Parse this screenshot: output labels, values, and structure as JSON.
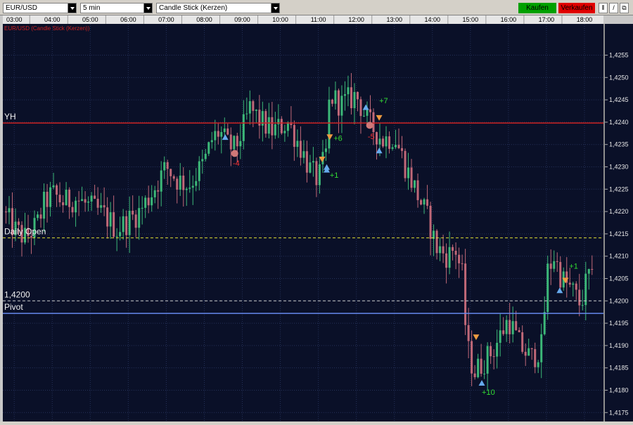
{
  "toolbar": {
    "symbol": "EUR/USD",
    "interval": "5 min",
    "chart_type": "Candle Stick (Kerzen)",
    "buy_label": "Kaufen",
    "sell_label": "Verkaufen",
    "buy_color": "#00a000",
    "sell_color": "#e00000"
  },
  "chart_data": {
    "type": "candlestick",
    "title": "EUR/USD (Candle Stick (Kerzen))",
    "x_ticks": [
      "03:00",
      "04:00",
      "05:00",
      "06:00",
      "07:00",
      "08:00",
      "09:00",
      "10:00",
      "11:00",
      "12:00",
      "13:00",
      "14:00",
      "15:00",
      "16:00",
      "17:00",
      "18:00"
    ],
    "y_ticks": [
      "1,4255",
      "1,4250",
      "1,4245",
      "1,4240",
      "1,4235",
      "1,4230",
      "1,4225",
      "1,4220",
      "1,4215",
      "1,4210",
      "1,4205",
      "1,4200",
      "1,4195",
      "1,4190",
      "1,4185",
      "1,4180",
      "1,4175"
    ],
    "ylim": [
      1.4173,
      1.4262
    ],
    "x_range_hours": [
      2.7,
      18.5
    ],
    "grid": true,
    "price_path": [
      [
        2.7,
        1.422
      ],
      [
        3.0,
        1.4216
      ],
      [
        3.3,
        1.4214
      ],
      [
        3.6,
        1.4217
      ],
      [
        3.8,
        1.4222
      ],
      [
        4.0,
        1.4224
      ],
      [
        4.3,
        1.4222
      ],
      [
        4.6,
        1.4223
      ],
      [
        5.0,
        1.4221
      ],
      [
        5.4,
        1.4219
      ],
      [
        5.7,
        1.4216
      ],
      [
        6.0,
        1.4218
      ],
      [
        6.3,
        1.422
      ],
      [
        6.6,
        1.4224
      ],
      [
        7.0,
        1.423
      ],
      [
        7.3,
        1.4227
      ],
      [
        7.6,
        1.4226
      ],
      [
        8.0,
        1.4231
      ],
      [
        8.2,
        1.4236
      ],
      [
        8.4,
        1.4238
      ],
      [
        8.6,
        1.4235
      ],
      [
        8.8,
        1.4234
      ],
      [
        9.0,
        1.4238
      ],
      [
        9.2,
        1.4243
      ],
      [
        9.5,
        1.424
      ],
      [
        9.8,
        1.4238
      ],
      [
        10.2,
        1.424
      ],
      [
        10.5,
        1.4235
      ],
      [
        10.8,
        1.4229
      ],
      [
        11.0,
        1.4227
      ],
      [
        11.2,
        1.4233
      ],
      [
        11.3,
        1.4246
      ],
      [
        11.6,
        1.4244
      ],
      [
        12.0,
        1.4246
      ],
      [
        12.3,
        1.424
      ],
      [
        12.5,
        1.4238
      ],
      [
        12.7,
        1.4236
      ],
      [
        13.0,
        1.4237
      ],
      [
        13.3,
        1.423
      ],
      [
        13.6,
        1.4224
      ],
      [
        13.9,
        1.4218
      ],
      [
        14.1,
        1.4212
      ],
      [
        14.4,
        1.421
      ],
      [
        14.6,
        1.4212
      ],
      [
        14.8,
        1.4205
      ],
      [
        14.9,
        1.419
      ],
      [
        15.1,
        1.4184
      ],
      [
        15.3,
        1.4186
      ],
      [
        15.6,
        1.4189
      ],
      [
        16.0,
        1.4196
      ],
      [
        16.3,
        1.419
      ],
      [
        16.6,
        1.4187
      ],
      [
        16.9,
        1.419
      ],
      [
        17.0,
        1.4206
      ],
      [
        17.2,
        1.421
      ],
      [
        17.4,
        1.4205
      ],
      [
        17.7,
        1.4202
      ],
      [
        17.9,
        1.4199
      ],
      [
        18.1,
        1.4206
      ],
      [
        18.2,
        1.4204
      ]
    ],
    "horizontal_lines": [
      {
        "label": "YH",
        "value": 1.42398,
        "color": "#cc2222",
        "style": "solid"
      },
      {
        "label": "Daily Open",
        "value": 1.42141,
        "color": "#dddd33",
        "style": "dashed"
      },
      {
        "label": "1,4200",
        "value": 1.42,
        "color": "#cccccc",
        "style": "dashed"
      },
      {
        "label": "Pivot",
        "value": 1.41972,
        "color": "#6688ee",
        "style": "solid"
      }
    ],
    "trade_markers": [
      {
        "t": 8.55,
        "p": 1.42365,
        "kind": "buy"
      },
      {
        "t": 8.8,
        "p": 1.4233,
        "kind": "close"
      },
      {
        "t": 11.1,
        "p": 1.42318,
        "kind": "sell"
      },
      {
        "t": 11.22,
        "p": 1.42298,
        "kind": "buy"
      },
      {
        "t": 11.22,
        "p": 1.42292,
        "kind": "buy"
      },
      {
        "t": 11.3,
        "p": 1.42368,
        "kind": "sell"
      },
      {
        "t": 12.25,
        "p": 1.42432,
        "kind": "buy"
      },
      {
        "t": 12.35,
        "p": 1.42393,
        "kind": "close"
      },
      {
        "t": 12.6,
        "p": 1.42411,
        "kind": "sell"
      },
      {
        "t": 12.6,
        "p": 1.42335,
        "kind": "buy"
      },
      {
        "t": 15.15,
        "p": 1.4192,
        "kind": "sell"
      },
      {
        "t": 15.3,
        "p": 1.41815,
        "kind": "buy"
      },
      {
        "t": 17.35,
        "p": 1.42022,
        "kind": "buy"
      },
      {
        "t": 17.5,
        "p": 1.42047,
        "kind": "sell"
      }
    ],
    "annotations": [
      {
        "t": 8.75,
        "p": 1.42302,
        "text": "-4",
        "color": "#ff3333"
      },
      {
        "t": 11.4,
        "p": 1.42358,
        "text": "+6",
        "color": "#33dd33"
      },
      {
        "t": 11.3,
        "p": 1.42276,
        "text": "+1",
        "color": "#33dd33"
      },
      {
        "t": 12.3,
        "p": 1.42362,
        "text": "-5",
        "color": "#ff3333"
      },
      {
        "t": 12.6,
        "p": 1.42442,
        "text": "+7",
        "color": "#33dd33"
      },
      {
        "t": 15.3,
        "p": 1.4179,
        "text": "+10",
        "color": "#33dd33"
      },
      {
        "t": 17.6,
        "p": 1.42072,
        "text": "+1",
        "color": "#33dd33"
      }
    ],
    "colors": {
      "background": "#0a1028",
      "grid": "#243058",
      "bull": "#3cb878",
      "bear": "#c06878",
      "buy_marker": "#66aaee",
      "sell_marker": "#ee9a40",
      "close_marker": "#d07878",
      "title": "#cc2222"
    }
  }
}
